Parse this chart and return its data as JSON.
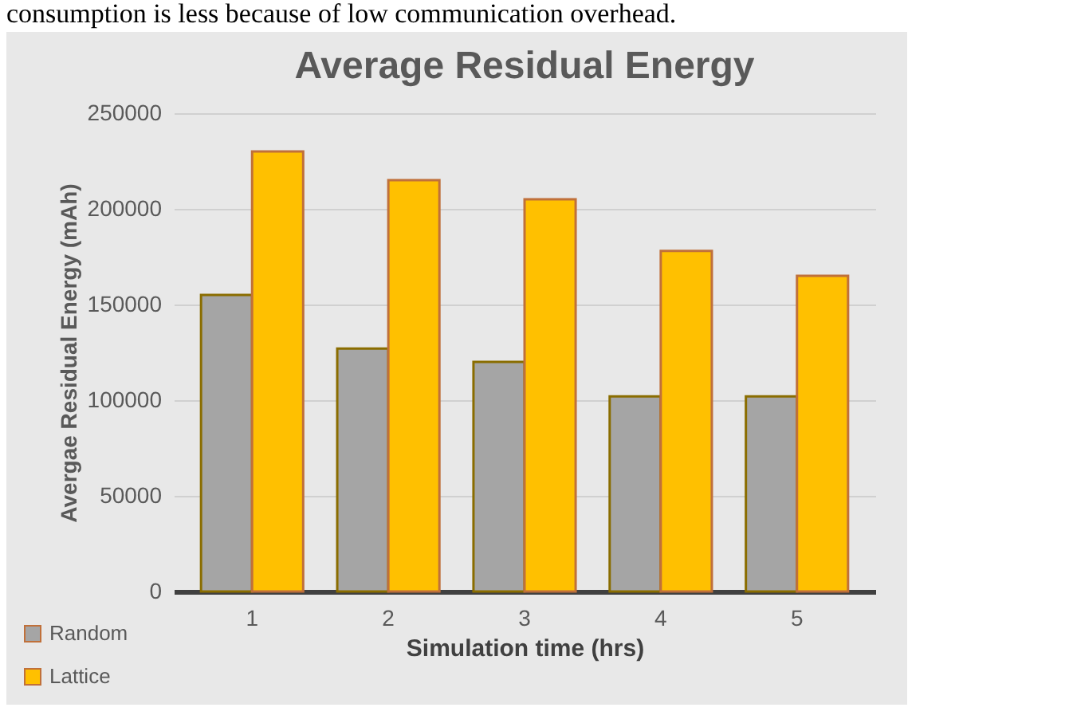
{
  "chart_data": {
    "type": "bar",
    "title": "Average Residual Energy",
    "xlabel": "Simulation time (hrs)",
    "ylabel": "Avergae Residual Energy (mAh)",
    "annotations": [
      "consumption is less because of low communication overhead."
    ],
    "categories": [
      "1",
      "2",
      "3",
      "4",
      "5"
    ],
    "series": [
      {
        "name": "Random",
        "color": "#a5a5a5",
        "values": [
          155000,
          127000,
          120000,
          102000,
          102000
        ]
      },
      {
        "name": "Lattice",
        "color": "#ffc000",
        "values": [
          230000,
          215000,
          205000,
          178000,
          165000
        ]
      }
    ],
    "ylim": [
      0,
      250000
    ],
    "yticks": [
      0,
      50000,
      100000,
      150000,
      200000,
      250000
    ],
    "grid": "y",
    "legend": "bottom left"
  }
}
